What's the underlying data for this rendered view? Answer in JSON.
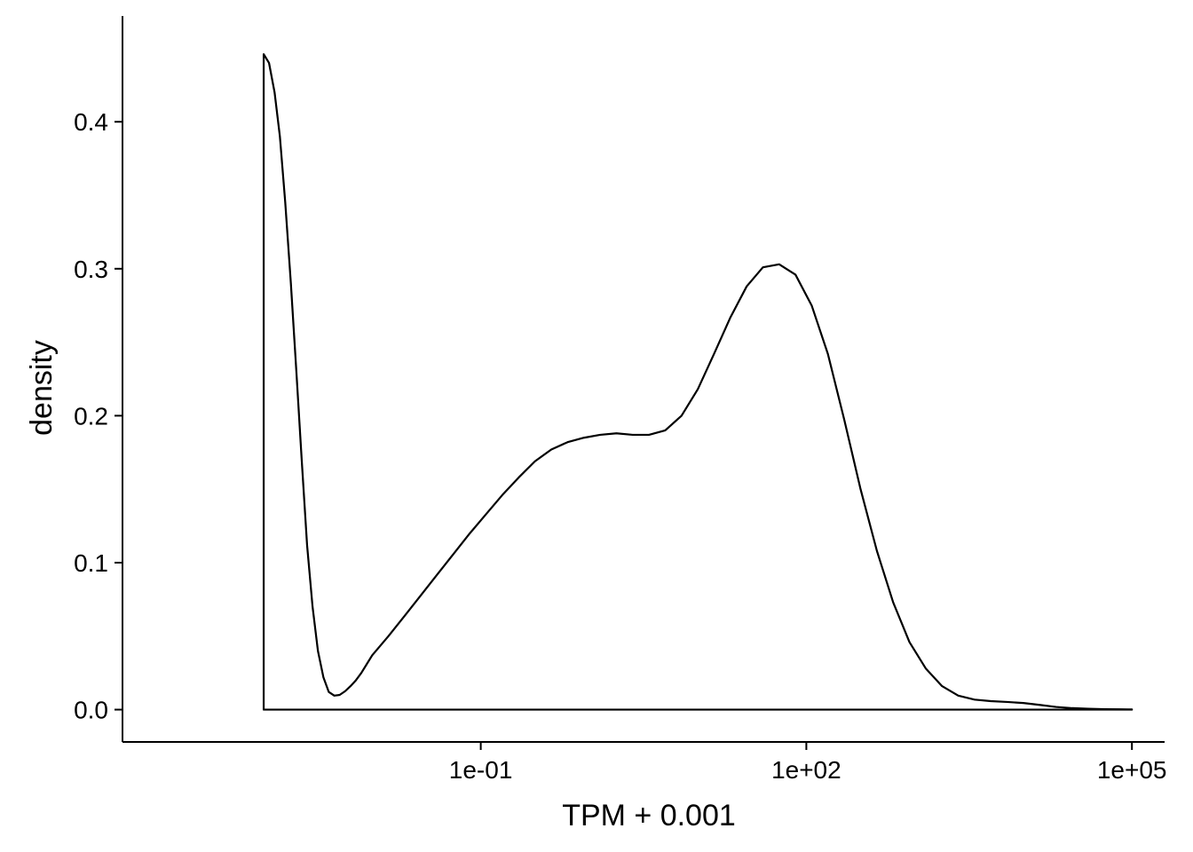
{
  "chart_data": {
    "type": "area",
    "title": "",
    "xlabel": "TPM + 0.001",
    "ylabel": "density",
    "x_scale": "log10",
    "xlim": [
      5e-05,
      200000
    ],
    "ylim": [
      -0.022,
      0.472
    ],
    "x_ticks": [
      {
        "value": 0.1,
        "label": "1e-01"
      },
      {
        "value": 100,
        "label": "1e+02"
      },
      {
        "value": 100000,
        "label": "1e+05"
      }
    ],
    "y_ticks": [
      {
        "value": 0.0,
        "label": "0.0"
      },
      {
        "value": 0.1,
        "label": "0.1"
      },
      {
        "value": 0.2,
        "label": "0.2"
      },
      {
        "value": 0.3,
        "label": "0.3"
      },
      {
        "value": 0.4,
        "label": "0.4"
      }
    ],
    "grid": false,
    "legend": "none",
    "line_color": "#000000",
    "fill": "none",
    "series": [
      {
        "x": [
          0.001,
          0.00112,
          0.00126,
          0.00141,
          0.00158,
          0.00178,
          0.002,
          0.00224,
          0.00251,
          0.00282,
          0.00316,
          0.00355,
          0.00398,
          0.00447,
          0.00501,
          0.00562,
          0.00631,
          0.00708,
          0.00794,
          0.00891,
          0.01,
          0.0141,
          0.02,
          0.0282,
          0.0398,
          0.0562,
          0.0794,
          0.112,
          0.158,
          0.224,
          0.316,
          0.447,
          0.631,
          0.891,
          1.26,
          1.78,
          2.51,
          3.55,
          5.01,
          7.08,
          10,
          14.1,
          20,
          28.2,
          39.8,
          56.2,
          79.4,
          112,
          158,
          224,
          316,
          447,
          631,
          891,
          1260,
          1780,
          2510,
          3550,
          5010,
          7080,
          10000,
          14100,
          20000,
          28200,
          39800,
          56200,
          79400,
          100000
        ],
        "y": [
          0.446,
          0.44,
          0.42,
          0.39,
          0.345,
          0.29,
          0.23,
          0.17,
          0.112,
          0.07,
          0.04,
          0.022,
          0.012,
          0.0095,
          0.01,
          0.0125,
          0.016,
          0.02,
          0.025,
          0.031,
          0.037,
          0.05,
          0.064,
          0.078,
          0.092,
          0.106,
          0.12,
          0.133,
          0.146,
          0.158,
          0.169,
          0.177,
          0.182,
          0.185,
          0.187,
          0.188,
          0.187,
          0.187,
          0.19,
          0.2,
          0.218,
          0.242,
          0.267,
          0.288,
          0.301,
          0.303,
          0.296,
          0.275,
          0.242,
          0.197,
          0.15,
          0.108,
          0.073,
          0.046,
          0.028,
          0.016,
          0.0095,
          0.0068,
          0.0058,
          0.0052,
          0.0045,
          0.0032,
          0.0018,
          0.001,
          0.0006,
          0.0003,
          0.0002,
          0.0001
        ]
      }
    ]
  }
}
